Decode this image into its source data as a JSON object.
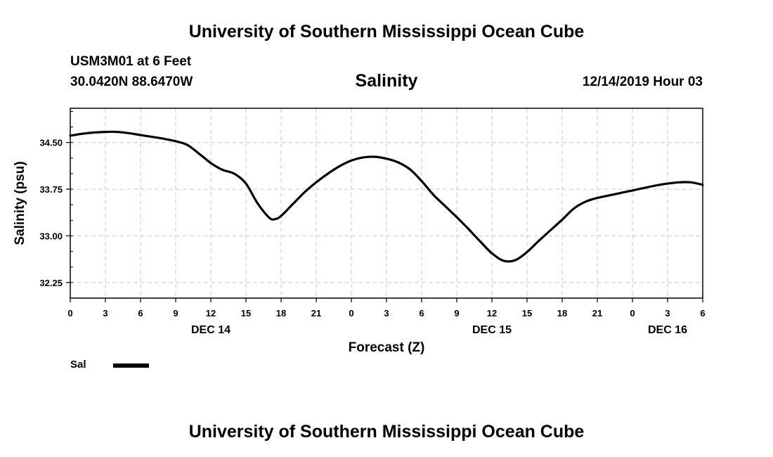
{
  "header": {
    "title": "University of Southern Mississippi Ocean Cube",
    "station": "USM3M01 at 6 Feet",
    "coordinates": "30.0420N 88.6470W",
    "datetime": "12/14/2019 Hour 03"
  },
  "footer": {
    "title": "University of Southern Mississippi Ocean Cube"
  },
  "legend": {
    "label": "Sal",
    "color": "#000000"
  },
  "chart_data": {
    "type": "line",
    "title": "Salinity",
    "xlabel": "Forecast (Z)",
    "ylabel": "Salinity (psu)",
    "xlim": [
      0,
      54
    ],
    "ylim": [
      32.0,
      35.05
    ],
    "x_ticks": [
      0,
      3,
      6,
      9,
      12,
      15,
      18,
      21,
      24,
      27,
      30,
      33,
      36,
      39,
      42,
      45,
      48,
      51,
      54
    ],
    "x_tick_labels": [
      "0",
      "3",
      "6",
      "9",
      "12",
      "15",
      "18",
      "21",
      "0",
      "3",
      "6",
      "9",
      "12",
      "15",
      "18",
      "21",
      "0",
      "3",
      "6"
    ],
    "day_labels": [
      {
        "x": 12,
        "label": "DEC 14"
      },
      {
        "x": 36,
        "label": "DEC 15"
      },
      {
        "x": 51,
        "label": "DEC 16"
      }
    ],
    "y_ticks": [
      32.25,
      33.0,
      33.75,
      34.5
    ],
    "y_tick_labels": [
      "32.25",
      "33.00",
      "33.75",
      "34.50"
    ],
    "grid": true,
    "legend_position": "bottom-left",
    "series": [
      {
        "name": "Sal",
        "x": [
          0,
          1,
          2,
          3,
          4,
          5,
          6,
          7,
          8,
          9,
          10,
          11,
          12,
          13,
          14,
          15,
          16,
          17,
          17.5,
          18,
          19,
          20,
          21,
          22,
          23,
          24,
          25,
          26,
          27,
          28,
          29,
          30,
          31,
          32,
          33,
          34,
          35,
          36,
          37,
          38,
          39,
          40,
          41,
          42,
          43,
          44,
          45,
          46,
          47,
          48,
          49,
          50,
          51,
          52,
          53,
          54
        ],
        "values": [
          34.61,
          34.64,
          34.66,
          34.67,
          34.67,
          34.65,
          34.62,
          34.59,
          34.56,
          34.52,
          34.46,
          34.32,
          34.17,
          34.06,
          34.0,
          33.84,
          33.52,
          33.29,
          33.27,
          33.32,
          33.51,
          33.7,
          33.86,
          34.0,
          34.12,
          34.21,
          34.26,
          34.27,
          34.24,
          34.18,
          34.07,
          33.88,
          33.66,
          33.48,
          33.3,
          33.11,
          32.91,
          32.72,
          32.6,
          32.61,
          32.74,
          32.92,
          33.09,
          33.26,
          33.44,
          33.55,
          33.61,
          33.65,
          33.69,
          33.73,
          33.77,
          33.81,
          33.84,
          33.86,
          33.86,
          33.82
        ]
      }
    ]
  }
}
